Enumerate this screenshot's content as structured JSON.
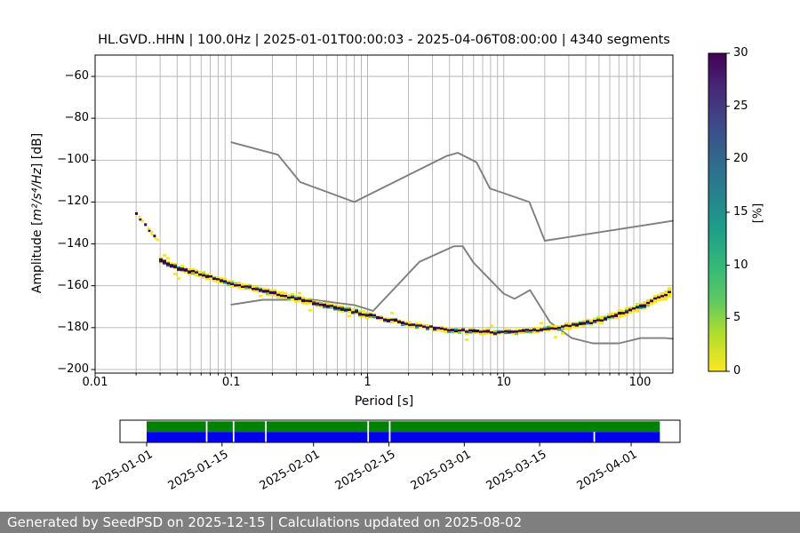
{
  "header": {
    "title": "HL.GVD..HHN | 100.0Hz | 2025-01-01T00:00:03 - 2025-04-06T08:00:00 | 4340 segments"
  },
  "footer": {
    "text": "Generated by SeedPSD on 2025-12-15 | Calculations updated on 2025-08-02",
    "bg": "#7f7f7f",
    "text_color": "#ffffff"
  },
  "chart_data": [
    {
      "type": "heatmap",
      "title": "HL.GVD..HHN | 100.0Hz | 2025-01-01T00:00:03 - 2025-04-06T08:00:00 | 4340 segments",
      "xlabel": "Period [s]",
      "ylabel": "Amplitude [m²/s⁴/Hz] [dB]",
      "ylabel_parts": {
        "prefix": "Amplitude [",
        "math": "m²/s⁴/Hz",
        "suffix": "] [dB]"
      },
      "xscale": "log",
      "xlim": [
        0.01,
        174
      ],
      "ylim": [
        -202,
        -50
      ],
      "grid": "both",
      "grid_color": "#b3b3b3",
      "xticks": [
        0.01,
        0.1,
        1,
        10,
        100
      ],
      "xtick_labels": [
        "0.01",
        "0.1",
        "1",
        "10",
        "100"
      ],
      "yticks": [
        -60,
        -80,
        -100,
        -120,
        -140,
        -160,
        -180,
        -200
      ],
      "colorbar": {
        "label": "[%]",
        "min": 0,
        "max": 30,
        "ticks": [
          0,
          5,
          10,
          15,
          20,
          25,
          30
        ],
        "colormap": "viridis_r",
        "stops_top_to_bottom": [
          "#440154",
          "#482878",
          "#3e4989",
          "#31688e",
          "#26828e",
          "#1f9e89",
          "#35b779",
          "#5ec962",
          "#b5de2b",
          "#fde725"
        ]
      },
      "band_colors": {
        "low": "#f5e625",
        "green": "#5ec962",
        "teal": "#21918c",
        "blue": "#31688e",
        "high": "#38064e"
      },
      "series": [
        {
          "name": "high_noise_model",
          "type": "line",
          "color": "#7f7f7f",
          "points": [
            [
              0.1,
              -91.5
            ],
            [
              0.22,
              -97.4
            ],
            [
              0.32,
              -110.5
            ],
            [
              0.8,
              -120.0
            ],
            [
              3.8,
              -98.0
            ],
            [
              4.6,
              -96.5
            ],
            [
              6.3,
              -101.0
            ],
            [
              7.9,
              -113.5
            ],
            [
              15.4,
              -120.0
            ],
            [
              20.0,
              -138.5
            ],
            [
              174.0,
              -129.0
            ]
          ]
        },
        {
          "name": "low_noise_model",
          "type": "line",
          "color": "#7f7f7f",
          "points": [
            [
              0.1,
              -169.0
            ],
            [
              0.17,
              -166.7
            ],
            [
              0.4,
              -166.7
            ],
            [
              0.8,
              -169.2
            ],
            [
              1.1,
              -172.0
            ],
            [
              2.4,
              -148.6
            ],
            [
              4.3,
              -141.1
            ],
            [
              5.0,
              -141.1
            ],
            [
              6.0,
              -149.0
            ],
            [
              10.0,
              -163.8
            ],
            [
              12.0,
              -166.2
            ],
            [
              15.6,
              -162.1
            ],
            [
              21.9,
              -177.5
            ],
            [
              31.6,
              -185.0
            ],
            [
              45.0,
              -187.5
            ],
            [
              70.0,
              -187.5
            ],
            [
              101.0,
              -185.0
            ],
            [
              154.0,
              -185.0
            ],
            [
              174.0,
              -185.3
            ]
          ]
        },
        {
          "name": "psd_mode_band",
          "type": "histogram_band",
          "lead_points": [
            [
              0.0197,
              -125.5
            ],
            [
              0.0285,
              -138.5
            ]
          ],
          "points": [
            [
              0.0295,
              -147.5
            ],
            [
              0.033,
              -149.5
            ],
            [
              0.04,
              -151.5
            ],
            [
              0.05,
              -153.5
            ],
            [
              0.06,
              -155.0
            ],
            [
              0.075,
              -157.0
            ],
            [
              0.1,
              -159.0
            ],
            [
              0.135,
              -161.0
            ],
            [
              0.185,
              -163.0
            ],
            [
              0.25,
              -165.0
            ],
            [
              0.33,
              -166.8
            ],
            [
              0.45,
              -168.8
            ],
            [
              0.61,
              -170.8
            ],
            [
              0.82,
              -172.7
            ],
            [
              1.0,
              -174.0
            ],
            [
              1.3,
              -175.8
            ],
            [
              1.75,
              -177.6
            ],
            [
              2.4,
              -179.3
            ],
            [
              3.2,
              -180.6
            ],
            [
              4.3,
              -181.4
            ],
            [
              5.8,
              -181.9
            ],
            [
              7.9,
              -182.1
            ],
            [
              10.6,
              -181.9
            ],
            [
              14.4,
              -181.4
            ],
            [
              19.4,
              -180.8
            ],
            [
              26,
              -179.7
            ],
            [
              35,
              -178.3
            ],
            [
              48,
              -176.5
            ],
            [
              65,
              -174.0
            ],
            [
              88,
              -171.0
            ],
            [
              110,
              -168.5
            ],
            [
              137,
              -165.5
            ],
            [
              165,
              -163.0
            ]
          ]
        }
      ]
    },
    {
      "type": "bar",
      "name": "coverage_timeline",
      "x_tick_labels": [
        "2025-01-01",
        "2025-01-15",
        "2025-02-01",
        "2025-02-15",
        "2025-03-01",
        "2025-03-15",
        "2025-04-01"
      ],
      "bars": [
        {
          "row": "green",
          "color": "#008000",
          "start": "2025-01-01",
          "end": "2025-04-06T08:00:00",
          "gaps": [
            "2025-01-12",
            "2025-01-17",
            "2025-01-23",
            "2025-02-11",
            "2025-02-15"
          ]
        },
        {
          "row": "blue",
          "color": "#0000ee",
          "start": "2025-01-01",
          "end": "2025-04-06T08:00:00",
          "gaps": [
            "2025-01-12",
            "2025-01-17",
            "2025-01-23",
            "2025-02-11",
            "2025-02-15",
            "2025-03-25"
          ]
        }
      ]
    }
  ]
}
